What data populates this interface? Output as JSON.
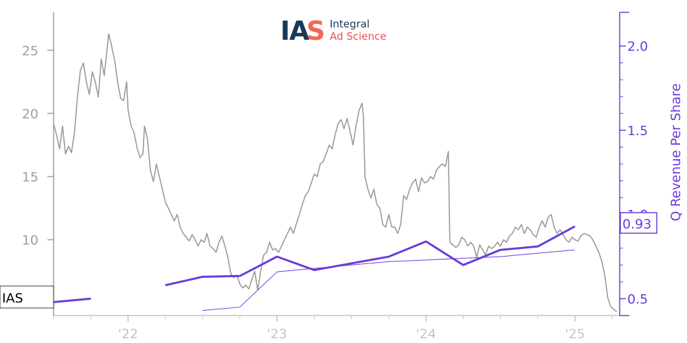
{
  "logo": {
    "mark_left": "I",
    "mark_mid": "A",
    "mark_right": "S",
    "name_line1": "Integral",
    "name_line2": "Ad Science",
    "colors": {
      "navy": "#173a5a",
      "coral": "#f06a55"
    }
  },
  "chart_data": {
    "type": "line",
    "ticker": "IAS",
    "last_value_label": "0.93",
    "x_tick_labels": [
      "'22",
      "'23",
      "'24",
      "'25"
    ],
    "y_left": {
      "ticks": [
        10,
        15,
        20,
        25
      ],
      "range": [
        4,
        28
      ]
    },
    "y_right": {
      "label": "Q Revenue Per Share",
      "ticks": [
        0.5,
        1.0,
        1.5,
        2.0
      ],
      "tick_labels": [
        "0.5",
        "1.0",
        "1.5",
        "2.0"
      ],
      "range": [
        0.4,
        2.2
      ]
    },
    "x_range": [
      2021.5,
      2025.3
    ],
    "colors": {
      "price": "#999999",
      "revenue": "#6a3bdc",
      "axis_left": "#9e9e9e",
      "axis_x": "#c4c4c4"
    },
    "series": [
      {
        "axis": "left",
        "points": [
          [
            2021.5,
            19.2
          ],
          [
            2021.52,
            18.3
          ],
          [
            2021.54,
            17.2
          ],
          [
            2021.56,
            19.0
          ],
          [
            2021.58,
            16.8
          ],
          [
            2021.6,
            17.4
          ],
          [
            2021.62,
            16.9
          ],
          [
            2021.64,
            18.5
          ],
          [
            2021.66,
            21.3
          ],
          [
            2021.68,
            23.4
          ],
          [
            2021.7,
            24.0
          ],
          [
            2021.72,
            22.5
          ],
          [
            2021.74,
            21.5
          ],
          [
            2021.76,
            23.3
          ],
          [
            2021.78,
            22.5
          ],
          [
            2021.8,
            21.3
          ],
          [
            2021.82,
            24.3
          ],
          [
            2021.84,
            23.0
          ],
          [
            2021.86,
            25.2
          ],
          [
            2021.87,
            26.3
          ],
          [
            2021.89,
            25.3
          ],
          [
            2021.91,
            24.2
          ],
          [
            2021.93,
            22.5
          ],
          [
            2021.95,
            21.2
          ],
          [
            2021.97,
            21.0
          ],
          [
            2021.99,
            22.5
          ],
          [
            2022.0,
            20.3
          ],
          [
            2022.02,
            19.0
          ],
          [
            2022.04,
            18.5
          ],
          [
            2022.06,
            17.3
          ],
          [
            2022.08,
            16.5
          ],
          [
            2022.1,
            16.8
          ],
          [
            2022.11,
            19.0
          ],
          [
            2022.13,
            18.0
          ],
          [
            2022.15,
            15.5
          ],
          [
            2022.17,
            14.6
          ],
          [
            2022.19,
            16.0
          ],
          [
            2022.21,
            15.0
          ],
          [
            2022.23,
            14.0
          ],
          [
            2022.25,
            13.0
          ],
          [
            2022.27,
            12.5
          ],
          [
            2022.29,
            12.0
          ],
          [
            2022.31,
            11.5
          ],
          [
            2022.33,
            12.0
          ],
          [
            2022.35,
            11.0
          ],
          [
            2022.37,
            10.5
          ],
          [
            2022.39,
            10.2
          ],
          [
            2022.41,
            9.9
          ],
          [
            2022.43,
            10.4
          ],
          [
            2022.45,
            10.0
          ],
          [
            2022.47,
            9.5
          ],
          [
            2022.49,
            10.0
          ],
          [
            2022.51,
            9.8
          ],
          [
            2022.53,
            10.5
          ],
          [
            2022.55,
            9.5
          ],
          [
            2022.57,
            9.3
          ],
          [
            2022.59,
            9.0
          ],
          [
            2022.61,
            9.8
          ],
          [
            2022.63,
            10.3
          ],
          [
            2022.65,
            9.5
          ],
          [
            2022.67,
            8.6
          ],
          [
            2022.69,
            7.3
          ],
          [
            2022.71,
            7.0
          ],
          [
            2022.73,
            7.2
          ],
          [
            2022.75,
            6.5
          ],
          [
            2022.77,
            6.2
          ],
          [
            2022.79,
            6.4
          ],
          [
            2022.81,
            6.1
          ],
          [
            2022.83,
            6.8
          ],
          [
            2022.85,
            7.5
          ],
          [
            2022.87,
            6.0
          ],
          [
            2022.89,
            7.5
          ],
          [
            2022.91,
            8.8
          ],
          [
            2022.93,
            9.0
          ],
          [
            2022.95,
            9.8
          ],
          [
            2022.97,
            9.2
          ],
          [
            2022.99,
            9.3
          ],
          [
            2023.01,
            9.0
          ],
          [
            2023.03,
            9.5
          ],
          [
            2023.05,
            10.0
          ],
          [
            2023.07,
            10.5
          ],
          [
            2023.09,
            11.0
          ],
          [
            2023.11,
            10.5
          ],
          [
            2023.13,
            11.3
          ],
          [
            2023.15,
            12.0
          ],
          [
            2023.17,
            12.8
          ],
          [
            2023.19,
            13.5
          ],
          [
            2023.21,
            13.8
          ],
          [
            2023.23,
            14.5
          ],
          [
            2023.25,
            15.2
          ],
          [
            2023.27,
            15.0
          ],
          [
            2023.29,
            16.0
          ],
          [
            2023.31,
            16.2
          ],
          [
            2023.33,
            16.8
          ],
          [
            2023.35,
            17.5
          ],
          [
            2023.37,
            17.2
          ],
          [
            2023.39,
            18.3
          ],
          [
            2023.41,
            19.2
          ],
          [
            2023.43,
            19.5
          ],
          [
            2023.45,
            18.8
          ],
          [
            2023.47,
            19.6
          ],
          [
            2023.49,
            18.6
          ],
          [
            2023.51,
            17.5
          ],
          [
            2023.53,
            19.0
          ],
          [
            2023.55,
            20.2
          ],
          [
            2023.57,
            20.8
          ],
          [
            2023.58,
            19.8
          ],
          [
            2023.59,
            15.0
          ],
          [
            2023.61,
            14.0
          ],
          [
            2023.63,
            13.3
          ],
          [
            2023.65,
            14.0
          ],
          [
            2023.67,
            12.8
          ],
          [
            2023.69,
            12.5
          ],
          [
            2023.71,
            11.2
          ],
          [
            2023.73,
            11.0
          ],
          [
            2023.75,
            12.0
          ],
          [
            2023.77,
            11.0
          ],
          [
            2023.79,
            11.0
          ],
          [
            2023.81,
            10.5
          ],
          [
            2023.83,
            11.2
          ],
          [
            2023.85,
            13.5
          ],
          [
            2023.87,
            13.2
          ],
          [
            2023.89,
            14.0
          ],
          [
            2023.91,
            14.5
          ],
          [
            2023.93,
            14.8
          ],
          [
            2023.95,
            13.8
          ],
          [
            2023.97,
            14.9
          ],
          [
            2023.99,
            14.5
          ],
          [
            2024.01,
            14.6
          ],
          [
            2024.03,
            15.0
          ],
          [
            2024.05,
            14.8
          ],
          [
            2024.07,
            15.5
          ],
          [
            2024.09,
            15.8
          ],
          [
            2024.11,
            16.0
          ],
          [
            2024.13,
            15.8
          ],
          [
            2024.15,
            17.0
          ],
          [
            2024.16,
            9.8
          ],
          [
            2024.18,
            9.6
          ],
          [
            2024.2,
            9.4
          ],
          [
            2024.22,
            9.6
          ],
          [
            2024.24,
            10.2
          ],
          [
            2024.26,
            10.0
          ],
          [
            2024.28,
            9.5
          ],
          [
            2024.3,
            9.8
          ],
          [
            2024.32,
            9.5
          ],
          [
            2024.34,
            8.6
          ],
          [
            2024.36,
            9.6
          ],
          [
            2024.38,
            9.2
          ],
          [
            2024.4,
            8.8
          ],
          [
            2024.42,
            9.5
          ],
          [
            2024.44,
            9.3
          ],
          [
            2024.46,
            9.5
          ],
          [
            2024.48,
            9.8
          ],
          [
            2024.5,
            9.5
          ],
          [
            2024.52,
            10.0
          ],
          [
            2024.54,
            9.8
          ],
          [
            2024.56,
            10.3
          ],
          [
            2024.58,
            10.5
          ],
          [
            2024.6,
            11.0
          ],
          [
            2024.62,
            10.8
          ],
          [
            2024.64,
            11.2
          ],
          [
            2024.66,
            10.5
          ],
          [
            2024.68,
            11.0
          ],
          [
            2024.7,
            10.8
          ],
          [
            2024.72,
            10.4
          ],
          [
            2024.74,
            10.2
          ],
          [
            2024.76,
            11.0
          ],
          [
            2024.78,
            11.5
          ],
          [
            2024.8,
            11.0
          ],
          [
            2024.82,
            11.8
          ],
          [
            2024.84,
            12.0
          ],
          [
            2024.86,
            11.0
          ],
          [
            2024.88,
            10.5
          ],
          [
            2024.9,
            10.8
          ],
          [
            2024.92,
            10.4
          ],
          [
            2024.94,
            10.0
          ],
          [
            2024.96,
            9.8
          ],
          [
            2024.98,
            10.2
          ],
          [
            2025.0,
            10.0
          ],
          [
            2025.02,
            9.9
          ],
          [
            2025.04,
            10.3
          ],
          [
            2025.06,
            10.5
          ],
          [
            2025.08,
            10.4
          ],
          [
            2025.1,
            10.3
          ],
          [
            2025.12,
            10.0
          ],
          [
            2025.14,
            9.5
          ],
          [
            2025.16,
            9.0
          ],
          [
            2025.18,
            8.3
          ],
          [
            2025.2,
            7.2
          ],
          [
            2025.22,
            5.4
          ],
          [
            2025.24,
            4.7
          ],
          [
            2025.26,
            4.5
          ],
          [
            2025.28,
            4.3
          ]
        ]
      },
      {
        "axis": "right",
        "segments": [
          [
            [
              2021.5,
              0.48
            ],
            [
              2021.75,
              0.5
            ]
          ],
          [
            [
              2022.25,
              0.58
            ],
            [
              2022.5,
              0.63
            ],
            [
              2022.75,
              0.635
            ],
            [
              2023.0,
              0.75
            ],
            [
              2023.25,
              0.67
            ],
            [
              2023.5,
              0.71
            ],
            [
              2023.75,
              0.75
            ],
            [
              2024.0,
              0.84
            ],
            [
              2024.25,
              0.7
            ],
            [
              2024.5,
              0.79
            ],
            [
              2024.75,
              0.81
            ],
            [
              2025.0,
              0.93
            ]
          ]
        ]
      },
      {
        "axis": "right",
        "points": [
          [
            2022.5,
            0.43
          ],
          [
            2022.75,
            0.45
          ],
          [
            2023.0,
            0.66
          ],
          [
            2023.25,
            0.68
          ],
          [
            2023.5,
            0.7
          ],
          [
            2023.75,
            0.72
          ],
          [
            2024.0,
            0.73
          ],
          [
            2024.25,
            0.74
          ],
          [
            2024.5,
            0.75
          ],
          [
            2024.75,
            0.77
          ],
          [
            2025.0,
            0.79
          ]
        ]
      }
    ]
  }
}
